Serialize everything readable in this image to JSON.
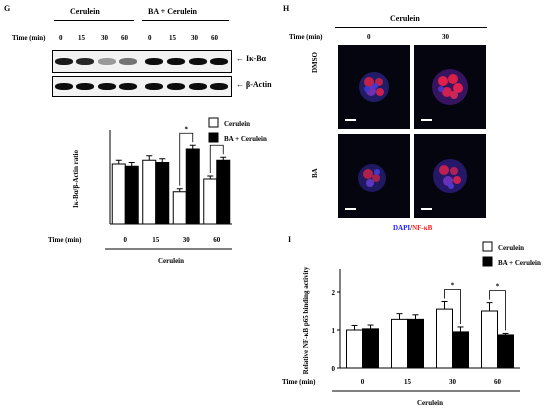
{
  "panel_g": {
    "letter": "G",
    "group1": "Cerulein",
    "group2": "BA + Cerulein",
    "time_label": "Time (min)",
    "times": [
      "0",
      "15",
      "30",
      "60",
      "0",
      "15",
      "30",
      "60"
    ],
    "blot1_label": "Iκ-Bα",
    "blot2_label": "β-Actin",
    "arrow": "←",
    "ikb_band_darkness": [
      0.9,
      0.85,
      0.4,
      0.55,
      0.95,
      0.95,
      0.95,
      0.95
    ],
    "actin_band_darkness": [
      0.95,
      0.95,
      0.95,
      0.95,
      0.95,
      0.95,
      0.95,
      0.95
    ]
  },
  "panel_h": {
    "letter": "H",
    "header": "Cerulein",
    "time_label": "Time (min)",
    "times": [
      "0",
      "30"
    ],
    "rows": [
      "DMSO",
      "BA"
    ],
    "caption_blue": "DAPI",
    "caption_sep": "/",
    "caption_red": "NF-κB"
  },
  "panel_i": {
    "letter": "I"
  },
  "chart_data": [
    {
      "id": "G-bar",
      "type": "bar",
      "ylabel": "Iκ-Bα/β-Actin ratio",
      "xlabel": "Time (min)",
      "group_label": "Cerulein",
      "categories": [
        "0",
        "15",
        "30",
        "60"
      ],
      "ylim": [
        0,
        1.2
      ],
      "series": [
        {
          "name": "Cerulein",
          "color": "#ffffff",
          "values": [
            0.8,
            0.85,
            0.43,
            0.6
          ],
          "errors": [
            0.05,
            0.06,
            0.04,
            0.04
          ]
        },
        {
          "name": "BA + Cerulein",
          "color": "#000000",
          "values": [
            0.77,
            0.82,
            1.0,
            0.85
          ],
          "errors": [
            0.05,
            0.05,
            0.05,
            0.04
          ]
        }
      ],
      "significance": [
        {
          "category": "30",
          "label": "*"
        },
        {
          "category": "60",
          "label": "*"
        }
      ],
      "legend_position": "top-right"
    },
    {
      "id": "I-bar",
      "type": "bar",
      "ylabel": "Relative NF-κB p65 binding activity",
      "xlabel": "Time (min)",
      "group_label": "Cerulein",
      "categories": [
        "0",
        "15",
        "30",
        "60"
      ],
      "ylim": [
        0,
        2.5
      ],
      "yticks": [
        "0",
        "1",
        "2"
      ],
      "series": [
        {
          "name": "Cerulein",
          "color": "#ffffff",
          "values": [
            1.0,
            1.28,
            1.55,
            1.5
          ],
          "errors": [
            0.12,
            0.15,
            0.2,
            0.22
          ]
        },
        {
          "name": "BA + Cerulein",
          "color": "#000000",
          "values": [
            1.03,
            1.28,
            0.95,
            0.87
          ],
          "errors": [
            0.1,
            0.12,
            0.13,
            0.04
          ]
        }
      ],
      "significance": [
        {
          "category": "30",
          "label": "*"
        },
        {
          "category": "60",
          "label": "*"
        }
      ],
      "legend_position": "top-right"
    }
  ]
}
